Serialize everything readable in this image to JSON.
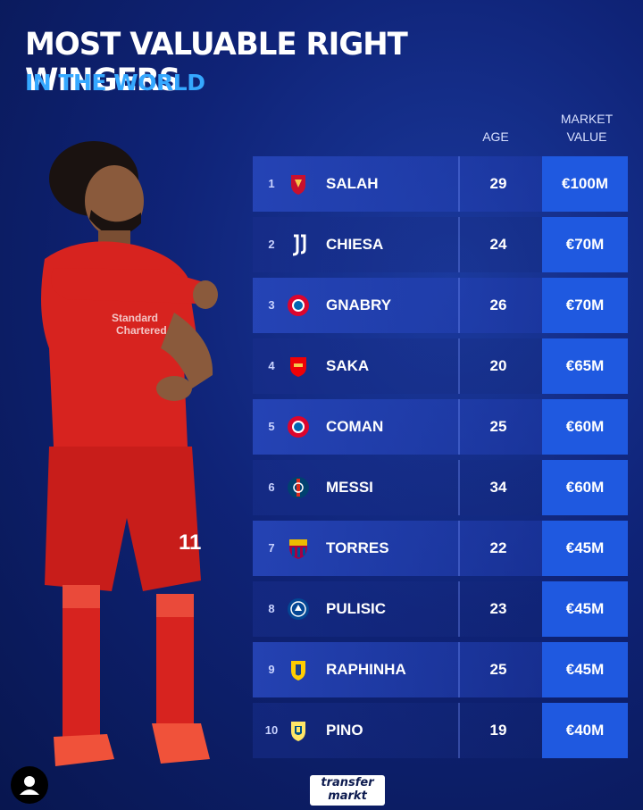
{
  "header": {
    "title": "MOST VALUABLE RIGHT WINGERS",
    "subtitle": "IN THE WORLD"
  },
  "columns": {
    "age": "AGE",
    "market_value_line1": "MARKET",
    "market_value_line2": "VALUE"
  },
  "players": [
    {
      "rank": "1",
      "name": "SALAH",
      "age": "29",
      "value": "€100M",
      "club_icon": "liverpool-crest"
    },
    {
      "rank": "2",
      "name": "CHIESA",
      "age": "24",
      "value": "€70M",
      "club_icon": "juventus-crest"
    },
    {
      "rank": "3",
      "name": "GNABRY",
      "age": "26",
      "value": "€70M",
      "club_icon": "bayern-crest"
    },
    {
      "rank": "4",
      "name": "SAKA",
      "age": "20",
      "value": "€65M",
      "club_icon": "arsenal-crest"
    },
    {
      "rank": "5",
      "name": "COMAN",
      "age": "25",
      "value": "€60M",
      "club_icon": "bayern-crest"
    },
    {
      "rank": "6",
      "name": "MESSI",
      "age": "34",
      "value": "€60M",
      "club_icon": "psg-crest"
    },
    {
      "rank": "7",
      "name": "TORRES",
      "age": "22",
      "value": "€45M",
      "club_icon": "barcelona-crest"
    },
    {
      "rank": "8",
      "name": "PULISIC",
      "age": "23",
      "value": "€45M",
      "club_icon": "chelsea-crest"
    },
    {
      "rank": "9",
      "name": "RAPHINHA",
      "age": "25",
      "value": "€45M",
      "club_icon": "leeds-crest"
    },
    {
      "rank": "10",
      "name": "PINO",
      "age": "19",
      "value": "€40M",
      "club_icon": "villarreal-crest"
    }
  ],
  "jersey": {
    "number": "11"
  },
  "logo": {
    "line1": "transfer",
    "line2": "markt"
  },
  "colors": {
    "title": "#ffffff",
    "subtitle": "#35a8ff",
    "value_box": "#1f59e0",
    "kit": "#d7231f"
  }
}
